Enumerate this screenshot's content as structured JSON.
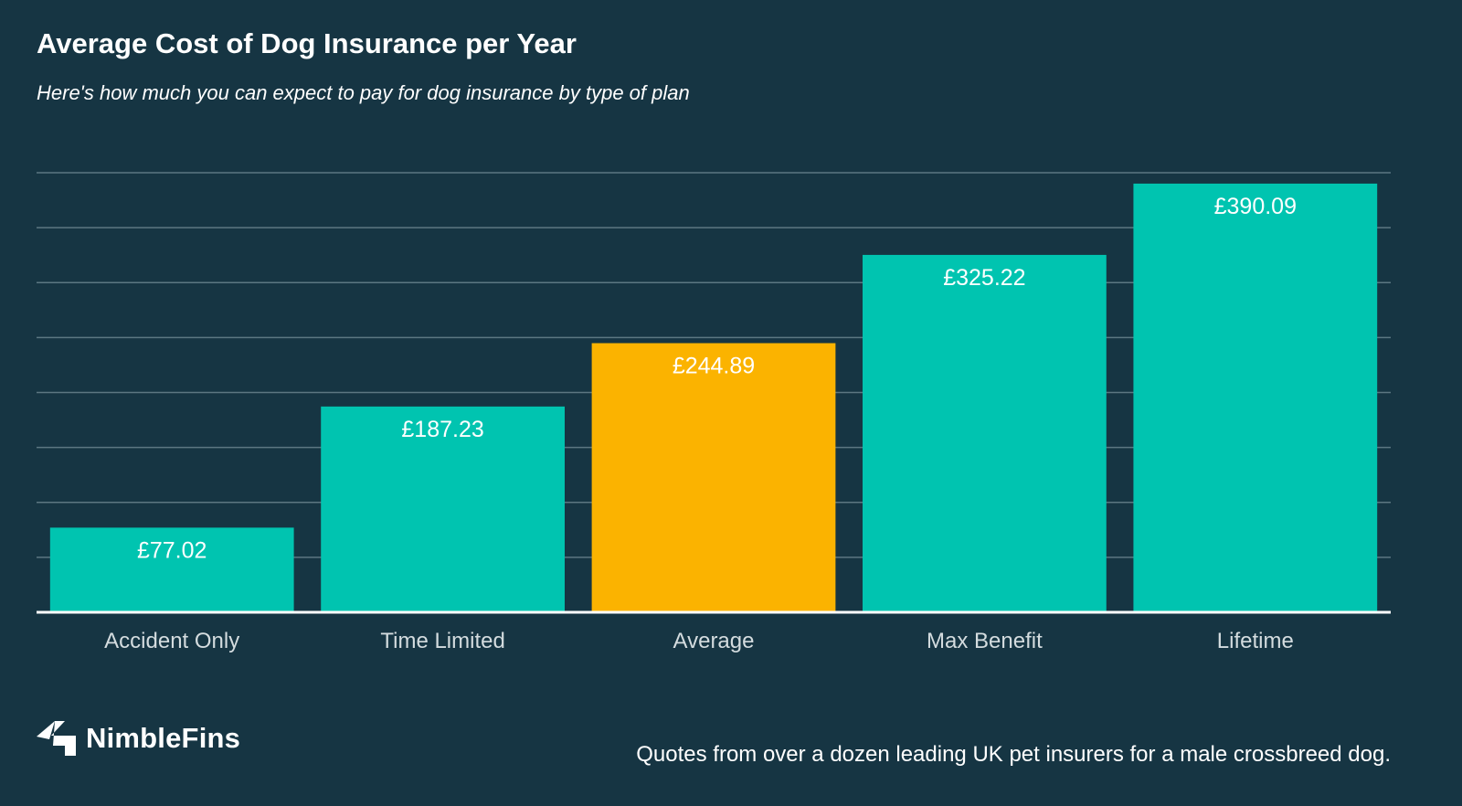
{
  "header": {
    "title": "Average Cost of Dog Insurance per Year",
    "subtitle": "Here's how much you can expect to pay for dog insurance by type of plan"
  },
  "chart_data": {
    "type": "bar",
    "title": "Average Cost of Dog Insurance per Year",
    "subtitle": "Here's how much you can expect to pay for dog insurance by type of plan",
    "categories": [
      "Accident Only",
      "Time Limited",
      "Average",
      "Max Benefit",
      "Lifetime"
    ],
    "values": [
      77.02,
      187.23,
      244.89,
      325.22,
      390.09
    ],
    "data_labels": [
      "£77.02",
      "£187.23",
      "£244.89",
      "£325.22",
      "£390.09"
    ],
    "xlabel": "",
    "ylabel": "",
    "ylim": [
      0,
      400
    ],
    "grid": true,
    "y_tick_labels_visible": false,
    "colors": {
      "default": "#00C4B0",
      "highlight": "#FBB300",
      "highlight_category": "Average",
      "grid": "#5C7782",
      "axis": "#FFFFFF",
      "tick_label": "#D4DCDF",
      "background": "#163543"
    }
  },
  "footer": {
    "brand": "NimbleFins",
    "brand_icon": "nimblefins-logo-icon",
    "note": "Quotes from over a dozen leading UK pet insurers for a male crossbreed dog."
  }
}
